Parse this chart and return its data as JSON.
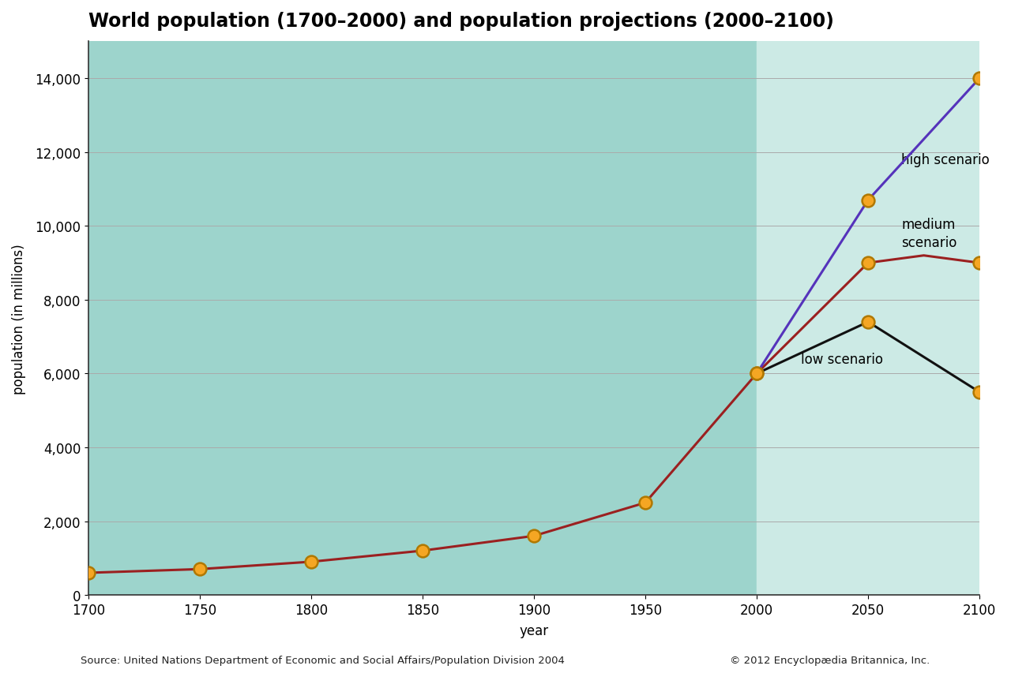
{
  "title": "World population (1700–2000) and population projections (2000–2100)",
  "xlabel": "year",
  "ylabel": "population (in millions)",
  "source_left": "Source: United Nations Department of Economic and Social Affairs/Population Division 2004",
  "source_right": "© 2012 Encyclopædia Britannica, Inc.",
  "historical_years": [
    1700,
    1750,
    1800,
    1850,
    1900,
    1950,
    2000
  ],
  "historical_values": [
    600,
    700,
    900,
    1200,
    1600,
    2500,
    6000
  ],
  "high_years": [
    2000,
    2050,
    2100
  ],
  "high_values": [
    6000,
    10700,
    14000
  ],
  "medium_years": [
    2000,
    2050,
    2075,
    2100
  ],
  "medium_values": [
    6000,
    9000,
    9200,
    9000
  ],
  "low_years": [
    2000,
    2050,
    2100
  ],
  "low_values": [
    6000,
    7400,
    5500
  ],
  "bg_color_historical": "#9dd4cc",
  "bg_color_projection": "#cceae5",
  "historical_line_color": "#9b2020",
  "high_line_color": "#5533bb",
  "medium_line_color": "#9b2020",
  "low_line_color": "#111111",
  "marker_face_color": "#f5a623",
  "marker_edge_color": "#b07800",
  "xlim": [
    1700,
    2100
  ],
  "ylim": [
    0,
    15000
  ],
  "yticks": [
    0,
    2000,
    4000,
    6000,
    8000,
    10000,
    12000,
    14000
  ],
  "xticks": [
    1700,
    1750,
    1800,
    1850,
    1900,
    1950,
    2000,
    2050,
    2100
  ],
  "grid_color": "#aaaaaa",
  "bg_color_white": "#ffffff",
  "title_fontsize": 17,
  "axis_label_fontsize": 12,
  "tick_fontsize": 12,
  "annotation_fontsize": 12,
  "source_fontsize": 9.5
}
